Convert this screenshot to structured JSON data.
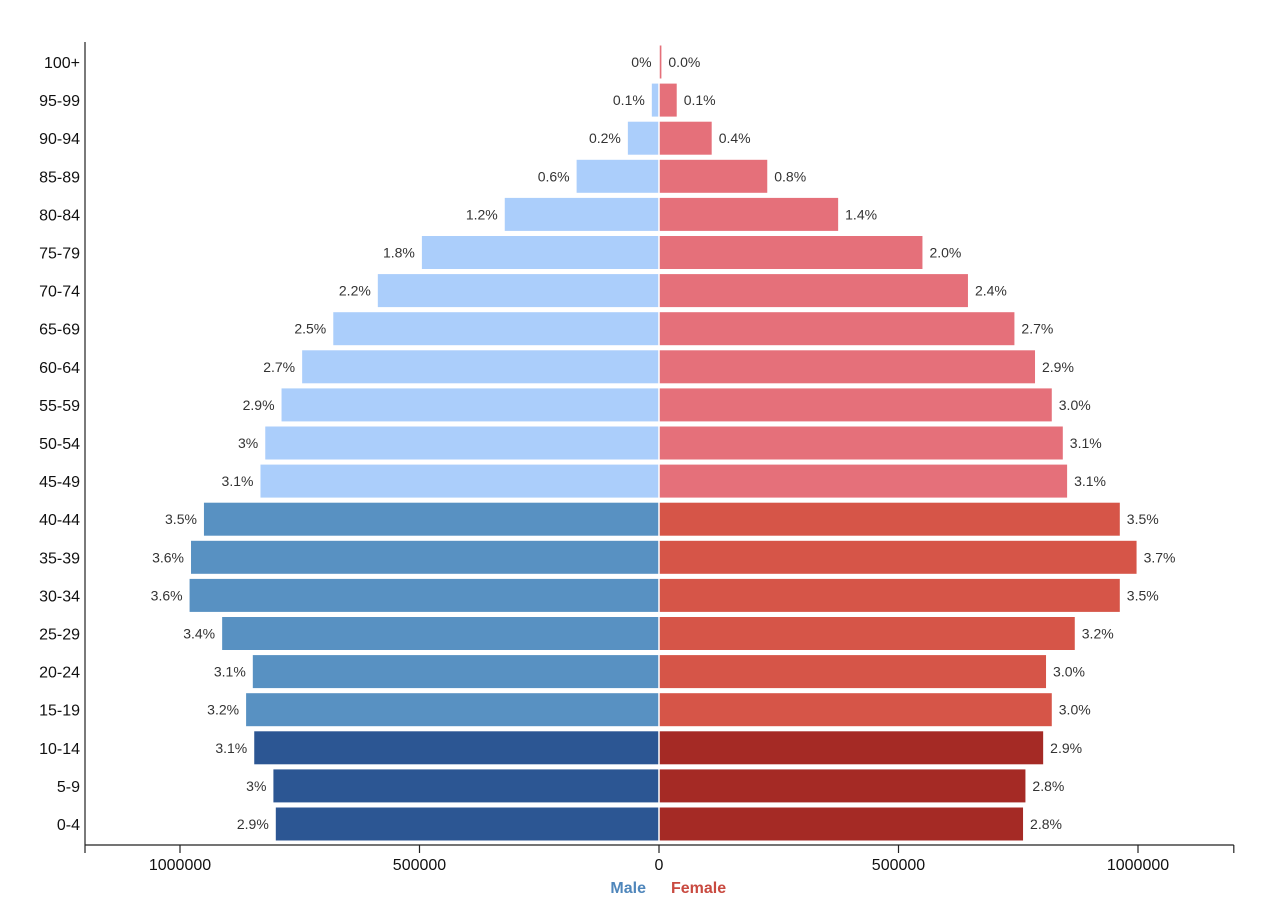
{
  "chart_data": {
    "type": "bar",
    "orientation": "horizontal-pyramid",
    "categories": [
      "0-4",
      "5-9",
      "10-14",
      "15-19",
      "20-24",
      "25-29",
      "30-34",
      "35-39",
      "40-44",
      "45-49",
      "50-54",
      "55-59",
      "60-64",
      "65-69",
      "70-74",
      "75-79",
      "80-84",
      "85-89",
      "90-94",
      "95-99",
      "100+"
    ],
    "series": [
      {
        "name": "Male",
        "values": [
          800000,
          805000,
          845000,
          862000,
          848000,
          912000,
          980000,
          977000,
          950000,
          832000,
          822000,
          788000,
          745000,
          680000,
          587000,
          495000,
          322000,
          172000,
          65000,
          15000,
          1000
        ],
        "labels": [
          "2.9%",
          "3%",
          "3.1%",
          "3.2%",
          "3.1%",
          "3.4%",
          "3.6%",
          "3.6%",
          "3.5%",
          "3.1%",
          "3%",
          "2.9%",
          "2.7%",
          "2.5%",
          "2.2%",
          "1.8%",
          "1.2%",
          "0.6%",
          "0.2%",
          "0.1%",
          "0%"
        ]
      },
      {
        "name": "Female",
        "values": [
          760000,
          765000,
          802000,
          820000,
          808000,
          868000,
          962000,
          997000,
          962000,
          852000,
          843000,
          820000,
          785000,
          742000,
          645000,
          550000,
          374000,
          226000,
          110000,
          37000,
          5000
        ],
        "labels": [
          "2.8%",
          "2.8%",
          "2.9%",
          "3.0%",
          "3.0%",
          "3.2%",
          "3.5%",
          "3.7%",
          "3.5%",
          "3.1%",
          "3.1%",
          "3.0%",
          "2.9%",
          "2.7%",
          "2.4%",
          "2.0%",
          "1.4%",
          "0.8%",
          "0.4%",
          "0.1%",
          "0.0%"
        ]
      }
    ],
    "xlim": [
      -1200000,
      1200000
    ],
    "x_ticks": [
      -1000000,
      -500000,
      0,
      500000,
      1000000
    ],
    "x_tick_labels": [
      "1000000",
      "500000",
      "0",
      "500000",
      "1000000"
    ],
    "legend_placement": "bottom-center",
    "title": "",
    "xlabel": "",
    "ylabel": "",
    "grid": false,
    "colors": {
      "male": [
        "#2c5693",
        "#2c5693",
        "#2c5693",
        "#5891c2",
        "#5891c2",
        "#5891c2",
        "#5891c2",
        "#5891c2",
        "#5891c2",
        "#abcefb",
        "#abcefb",
        "#abcefb",
        "#abcefb",
        "#abcefb",
        "#abcefb",
        "#abcefb",
        "#abcefb",
        "#abcefb",
        "#abcefb",
        "#abcefb",
        "#abcefb"
      ],
      "female": [
        "#a52a25",
        "#a52a25",
        "#a52a25",
        "#d65548",
        "#d65548",
        "#d65548",
        "#d65548",
        "#d65548",
        "#d65548",
        "#e5707a",
        "#e5707a",
        "#e5707a",
        "#e5707a",
        "#e5707a",
        "#e5707a",
        "#e5707a",
        "#e5707a",
        "#e5707a",
        "#e5707a",
        "#e5707a",
        "#e5707a"
      ],
      "male_legend": "#4f86bb",
      "female_legend": "#c94a40",
      "axis": "#222222"
    }
  }
}
